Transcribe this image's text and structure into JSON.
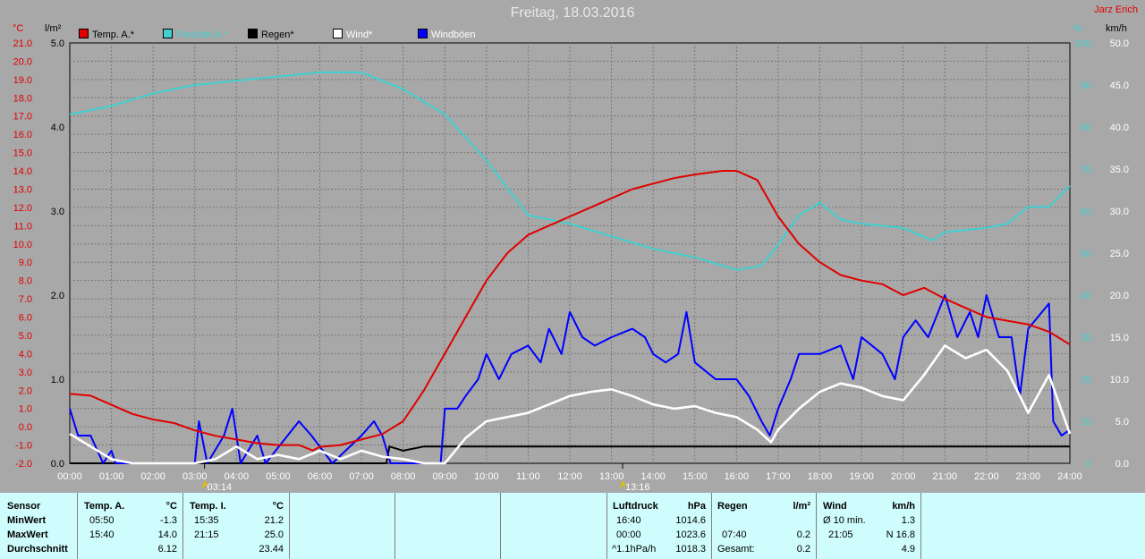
{
  "title": "Freitag, 18.03.2016",
  "author": "Jarz Erich",
  "colors": {
    "background": "#a8a8a8",
    "temp": "#e00000",
    "humidity": "#40d0d0",
    "rain": "#000000",
    "wind": "#ffffff",
    "gusts": "#0000ff",
    "table_bg": "#cffcfc"
  },
  "axes": {
    "temp_unit": "°C",
    "rain_unit": "l/m²",
    "humidity_unit": "%",
    "wind_unit": "km/h"
  },
  "legend": [
    {
      "label": "Temp. A.*",
      "color": "#e00000"
    },
    {
      "label": "Feuchte A.*",
      "color": "#40d0d0"
    },
    {
      "label": "Regen*",
      "color": "#000000"
    },
    {
      "label": "Wind*",
      "color": "#ffffff"
    },
    {
      "label": "Windböen",
      "color": "#0000ff"
    }
  ],
  "markers": [
    {
      "time": "03:14",
      "label": "03:14"
    },
    {
      "time": "13:16",
      "label": "13:16"
    }
  ],
  "chart_data": {
    "type": "line",
    "xlabel": "",
    "x_ticks": [
      "00:00",
      "01:00",
      "02:00",
      "03:00",
      "04:00",
      "05:00",
      "06:00",
      "07:00",
      "08:00",
      "09:00",
      "10:00",
      "11:00",
      "12:00",
      "13:00",
      "14:00",
      "15:00",
      "16:00",
      "17:00",
      "18:00",
      "19:00",
      "20:00",
      "21:00",
      "22:00",
      "23:00",
      "24:00"
    ],
    "x_range_hours": [
      0,
      24
    ],
    "temp_axis": {
      "unit": "°C",
      "range": [
        -2.0,
        21.0
      ],
      "ticks": [
        "21.0",
        "20.0",
        "19.0",
        "18.0",
        "17.0",
        "16.0",
        "15.0",
        "14.0",
        "13.0",
        "12.0",
        "11.0",
        "10.0",
        "9.0",
        "8.0",
        "7.0",
        "6.0",
        "5.0",
        "4.0",
        "3.0",
        "2.0",
        "1.0",
        "0.0",
        "-1.0",
        "-2.0"
      ]
    },
    "rain_axis": {
      "unit": "l/m²",
      "range": [
        0.0,
        5.0
      ],
      "ticks": [
        "5.0",
        "4.0",
        "3.0",
        "2.0",
        "1.0",
        "0.0"
      ]
    },
    "humidity_axis": {
      "unit": "%",
      "range": [
        0,
        100
      ],
      "ticks": [
        "100",
        "90",
        "80",
        "70",
        "60",
        "50",
        "40",
        "30",
        "20",
        "10",
        "0"
      ]
    },
    "wind_axis": {
      "unit": "km/h",
      "range": [
        0.0,
        50.0
      ],
      "ticks": [
        "50.0",
        "45.0",
        "40.0",
        "35.0",
        "30.0",
        "25.0",
        "20.0",
        "15.0",
        "10.0",
        "5.0",
        "0.0"
      ]
    },
    "grid": true,
    "series": [
      {
        "name": "Temp. A.*",
        "axis": "temp",
        "color": "#e00000",
        "points": [
          [
            0,
            1.8
          ],
          [
            0.5,
            1.7
          ],
          [
            1,
            1.2
          ],
          [
            1.5,
            0.7
          ],
          [
            2,
            0.4
          ],
          [
            2.5,
            0.2
          ],
          [
            3,
            -0.2
          ],
          [
            3.5,
            -0.5
          ],
          [
            4,
            -0.7
          ],
          [
            4.5,
            -0.9
          ],
          [
            5,
            -1.0
          ],
          [
            5.5,
            -1.0
          ],
          [
            5.83,
            -1.3
          ],
          [
            6,
            -1.1
          ],
          [
            6.5,
            -1.0
          ],
          [
            7,
            -0.7
          ],
          [
            7.5,
            -0.4
          ],
          [
            8,
            0.3
          ],
          [
            8.5,
            2.0
          ],
          [
            9,
            4.0
          ],
          [
            9.5,
            6.0
          ],
          [
            10,
            8.0
          ],
          [
            10.5,
            9.5
          ],
          [
            11,
            10.5
          ],
          [
            11.5,
            11.0
          ],
          [
            12,
            11.5
          ],
          [
            12.5,
            12.0
          ],
          [
            13,
            12.5
          ],
          [
            13.5,
            13.0
          ],
          [
            14,
            13.3
          ],
          [
            14.5,
            13.6
          ],
          [
            15,
            13.8
          ],
          [
            15.67,
            14.0
          ],
          [
            16,
            14.0
          ],
          [
            16.5,
            13.5
          ],
          [
            17,
            11.5
          ],
          [
            17.5,
            10.0
          ],
          [
            18,
            9.0
          ],
          [
            18.5,
            8.3
          ],
          [
            19,
            8.0
          ],
          [
            19.5,
            7.8
          ],
          [
            20,
            7.2
          ],
          [
            20.5,
            7.6
          ],
          [
            21,
            7.0
          ],
          [
            21.5,
            6.5
          ],
          [
            22,
            6.0
          ],
          [
            22.5,
            5.8
          ],
          [
            23,
            5.6
          ],
          [
            23.5,
            5.2
          ],
          [
            24,
            4.5
          ]
        ]
      },
      {
        "name": "Feuchte A.*",
        "axis": "humidity",
        "color": "#40d0d0",
        "points": [
          [
            0,
            83
          ],
          [
            1,
            85
          ],
          [
            2,
            88
          ],
          [
            3,
            90
          ],
          [
            4,
            91
          ],
          [
            5,
            92
          ],
          [
            6,
            93
          ],
          [
            7,
            93
          ],
          [
            8,
            89
          ],
          [
            9,
            83
          ],
          [
            10,
            72
          ],
          [
            11,
            59
          ],
          [
            12,
            57
          ],
          [
            13,
            54
          ],
          [
            14,
            51
          ],
          [
            15,
            49
          ],
          [
            16,
            46
          ],
          [
            16.6,
            47
          ],
          [
            17,
            52
          ],
          [
            17.5,
            59
          ],
          [
            18,
            62
          ],
          [
            18.5,
            58
          ],
          [
            19,
            57
          ],
          [
            20,
            56
          ],
          [
            20.7,
            53
          ],
          [
            21,
            55
          ],
          [
            22,
            56
          ],
          [
            22.5,
            57
          ],
          [
            23,
            61
          ],
          [
            23.5,
            61
          ],
          [
            24,
            66
          ]
        ]
      },
      {
        "name": "Regen*",
        "axis": "rain",
        "color": "#000000",
        "points": [
          [
            0,
            0
          ],
          [
            7.6,
            0
          ],
          [
            7.67,
            0.2
          ],
          [
            8,
            0.15
          ],
          [
            8.5,
            0.2
          ],
          [
            9,
            0.2
          ],
          [
            24,
            0.2
          ]
        ]
      },
      {
        "name": "Wind*",
        "axis": "wind",
        "color": "#ffffff",
        "points": [
          [
            0,
            3.5
          ],
          [
            0.5,
            2
          ],
          [
            1,
            0.5
          ],
          [
            1.5,
            0
          ],
          [
            3,
            0
          ],
          [
            3.5,
            0.5
          ],
          [
            4,
            2
          ],
          [
            4.5,
            0.5
          ],
          [
            5,
            1
          ],
          [
            5.5,
            0.5
          ],
          [
            6,
            1.5
          ],
          [
            6.5,
            0.5
          ],
          [
            7,
            1.5
          ],
          [
            7.5,
            0.8
          ],
          [
            8,
            0.5
          ],
          [
            8.5,
            0
          ],
          [
            9,
            0
          ],
          [
            9.5,
            3
          ],
          [
            10,
            5
          ],
          [
            10.5,
            5.5
          ],
          [
            11,
            6
          ],
          [
            11.5,
            7
          ],
          [
            12,
            8
          ],
          [
            12.5,
            8.5
          ],
          [
            13,
            8.8
          ],
          [
            13.5,
            8
          ],
          [
            14,
            7
          ],
          [
            14.5,
            6.5
          ],
          [
            15,
            6.8
          ],
          [
            15.5,
            6
          ],
          [
            16,
            5.5
          ],
          [
            16.5,
            4
          ],
          [
            16.83,
            2.5
          ],
          [
            17,
            4
          ],
          [
            17.5,
            6.5
          ],
          [
            18,
            8.5
          ],
          [
            18.5,
            9.5
          ],
          [
            19,
            9.0
          ],
          [
            19.5,
            8.0
          ],
          [
            20,
            7.5
          ],
          [
            20.5,
            10.5
          ],
          [
            21,
            14
          ],
          [
            21.5,
            12.5
          ],
          [
            22,
            13.5
          ],
          [
            22.5,
            11
          ],
          [
            23,
            6
          ],
          [
            23.5,
            10.5
          ],
          [
            24,
            3.5
          ]
        ]
      },
      {
        "name": "Windböen",
        "axis": "wind",
        "color": "#0000ff",
        "points": [
          [
            0,
            6.5
          ],
          [
            0.2,
            3.3
          ],
          [
            0.5,
            3.3
          ],
          [
            0.8,
            0
          ],
          [
            1,
            1.5
          ],
          [
            1.1,
            0
          ],
          [
            3,
            0
          ],
          [
            3.1,
            5
          ],
          [
            3.3,
            0
          ],
          [
            3.7,
            3.3
          ],
          [
            3.9,
            6.5
          ],
          [
            4.1,
            0
          ],
          [
            4.5,
            3.3
          ],
          [
            4.7,
            0
          ],
          [
            5.5,
            5
          ],
          [
            5.8,
            3.3
          ],
          [
            6.3,
            0
          ],
          [
            7,
            3.3
          ],
          [
            7.3,
            5
          ],
          [
            7.5,
            3.3
          ],
          [
            7.7,
            0
          ],
          [
            8.9,
            0
          ],
          [
            9,
            6.5
          ],
          [
            9.3,
            6.5
          ],
          [
            9.5,
            8
          ],
          [
            9.8,
            10
          ],
          [
            10,
            13
          ],
          [
            10.3,
            10
          ],
          [
            10.6,
            13
          ],
          [
            11,
            14
          ],
          [
            11.3,
            12
          ],
          [
            11.5,
            16
          ],
          [
            11.8,
            13
          ],
          [
            12,
            18
          ],
          [
            12.3,
            15
          ],
          [
            12.6,
            14
          ],
          [
            13,
            15
          ],
          [
            13.5,
            16
          ],
          [
            13.8,
            15
          ],
          [
            14,
            13
          ],
          [
            14.3,
            12
          ],
          [
            14.6,
            13
          ],
          [
            14.8,
            18
          ],
          [
            15,
            12
          ],
          [
            15.5,
            10
          ],
          [
            16,
            10
          ],
          [
            16.3,
            8
          ],
          [
            16.6,
            5
          ],
          [
            16.8,
            3.3
          ],
          [
            17,
            6.5
          ],
          [
            17.3,
            10
          ],
          [
            17.5,
            13
          ],
          [
            18,
            13
          ],
          [
            18.5,
            14
          ],
          [
            18.8,
            10
          ],
          [
            19,
            15
          ],
          [
            19.5,
            13
          ],
          [
            19.8,
            10
          ],
          [
            20,
            15
          ],
          [
            20.3,
            17
          ],
          [
            20.6,
            15
          ],
          [
            21,
            20
          ],
          [
            21.3,
            15
          ],
          [
            21.6,
            18
          ],
          [
            21.8,
            15
          ],
          [
            22,
            20
          ],
          [
            22.3,
            15
          ],
          [
            22.6,
            15
          ],
          [
            22.8,
            8
          ],
          [
            23,
            16
          ],
          [
            23.5,
            19
          ],
          [
            23.6,
            5
          ],
          [
            23.8,
            3.3
          ],
          [
            24,
            4
          ]
        ]
      }
    ]
  },
  "table": {
    "sensor": {
      "header": "Sensor",
      "rows": [
        "MinWert",
        "MaxWert",
        "Durchschnitt"
      ]
    },
    "temp_a": {
      "header": "Temp. A.",
      "unit": "°C",
      "min_time": "05:50",
      "min_val": "-1.3",
      "max_time": "15:40",
      "max_val": "14.0",
      "avg": "6.12"
    },
    "temp_i": {
      "header": "Temp. I.",
      "unit": "°C",
      "min_time": "15:35",
      "min_val": "21.2",
      "max_time": "21:15",
      "max_val": "25.0",
      "avg": "23.44"
    },
    "pressure": {
      "header": "Luftdruck",
      "unit": "hPa",
      "min_time": "16:40",
      "min_val": "1014.6",
      "max_time": "00:00",
      "max_val": "1023.6",
      "trend": "^1.1hPa/h",
      "trend_val": "1018.3"
    },
    "rain": {
      "header": "Regen",
      "unit": "l/m²",
      "time": "07:40",
      "val": "0.2",
      "total_label": "Gesamt:",
      "total": "0.2"
    },
    "wind": {
      "header": "Wind",
      "unit": "km/h",
      "avg_label": "Ø 10 min.",
      "avg_val": "1.3",
      "max_time": "21:05",
      "max_val": "N 16.8",
      "avg": "4.9"
    }
  }
}
